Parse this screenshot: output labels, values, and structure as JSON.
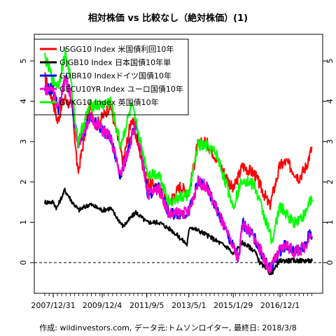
{
  "chart_data": {
    "type": "line",
    "title": "相対株価 vs 比較なし（絶対株価）(1)",
    "caption": "作成: wildinvestors.com, データ元:トムソンロイター, 最終日: 2018/3/8",
    "x_tick_labels": [
      "2007/12/31",
      "2009/12/4",
      "2011/9/5",
      "2013/5/1",
      "2015/1/29",
      "2016/12/1"
    ],
    "x_tick_dates": [
      "2007-12-31",
      "2009-12-04",
      "2011-09-05",
      "2013-05-01",
      "2015-01-29",
      "2016-12-01"
    ],
    "x_range": [
      "2007-09-01",
      "2018-03-08"
    ],
    "ylim": [
      -0.5,
      5.4
    ],
    "y_ticks": [
      0,
      1,
      2,
      3,
      4,
      5
    ],
    "y_ticks_both_sides": true,
    "zero_line": "dashed",
    "grid": false,
    "legend_position": "top-left",
    "series": [
      {
        "name": "USGG10 Index 米国債利回10年",
        "color": "#ff0000",
        "points": [
          [
            "2007-09-01",
            4.6
          ],
          [
            "2007-11-01",
            4.3
          ],
          [
            "2007-12-31",
            4.0
          ],
          [
            "2008-03-01",
            3.5
          ],
          [
            "2008-06-15",
            4.1
          ],
          [
            "2008-10-01",
            3.8
          ],
          [
            "2008-12-20",
            2.2
          ],
          [
            "2009-03-01",
            2.9
          ],
          [
            "2009-06-10",
            3.9
          ],
          [
            "2009-09-01",
            3.4
          ],
          [
            "2009-12-04",
            3.6
          ],
          [
            "2010-04-01",
            3.9
          ],
          [
            "2010-10-01",
            2.5
          ],
          [
            "2011-02-01",
            3.6
          ],
          [
            "2011-09-05",
            2.0
          ],
          [
            "2012-01-01",
            1.9
          ],
          [
            "2012-07-20",
            1.5
          ],
          [
            "2013-01-01",
            1.9
          ],
          [
            "2013-05-01",
            1.7
          ],
          [
            "2013-09-01",
            2.9
          ],
          [
            "2014-01-01",
            3.0
          ],
          [
            "2014-06-01",
            2.6
          ],
          [
            "2015-01-29",
            1.8
          ],
          [
            "2015-06-10",
            2.4
          ],
          [
            "2015-12-01",
            2.2
          ],
          [
            "2016-07-05",
            1.4
          ],
          [
            "2016-12-01",
            2.4
          ],
          [
            "2017-03-01",
            2.5
          ],
          [
            "2017-09-01",
            2.1
          ],
          [
            "2017-12-15",
            2.4
          ],
          [
            "2018-03-08",
            2.87
          ]
        ]
      },
      {
        "name": "GJGB10 Index 日本国債10年単",
        "color": "#000000",
        "points": [
          [
            "2007-09-01",
            1.5
          ],
          [
            "2007-12-31",
            1.5
          ],
          [
            "2008-02-20",
            1.35
          ],
          [
            "2008-06-15",
            1.8
          ],
          [
            "2008-10-01",
            1.5
          ],
          [
            "2009-01-01",
            1.3
          ],
          [
            "2009-06-10",
            1.45
          ],
          [
            "2009-12-04",
            1.3
          ],
          [
            "2010-04-01",
            1.35
          ],
          [
            "2010-10-01",
            0.9
          ],
          [
            "2011-04-01",
            1.25
          ],
          [
            "2011-09-05",
            1.0
          ],
          [
            "2012-03-01",
            1.0
          ],
          [
            "2012-09-01",
            0.8
          ],
          [
            "2013-04-05",
            0.45
          ],
          [
            "2013-05-15",
            0.9
          ],
          [
            "2014-01-01",
            0.7
          ],
          [
            "2014-12-01",
            0.35
          ],
          [
            "2015-01-20",
            0.2
          ],
          [
            "2015-06-10",
            0.5
          ],
          [
            "2015-12-01",
            0.3
          ],
          [
            "2016-02-15",
            0.0
          ],
          [
            "2016-07-25",
            -0.28
          ],
          [
            "2016-12-01",
            0.05
          ],
          [
            "2017-06-01",
            0.05
          ],
          [
            "2017-12-01",
            0.05
          ],
          [
            "2018-03-08",
            0.04
          ]
        ]
      },
      {
        "name": "GDBR10 Indexドイツ国債10年",
        "color": "#0000ff",
        "points": [
          [
            "2007-09-01",
            4.3
          ],
          [
            "2007-12-31",
            4.3
          ],
          [
            "2008-03-15",
            3.8
          ],
          [
            "2008-06-25",
            4.6
          ],
          [
            "2008-09-01",
            4.2
          ],
          [
            "2008-12-20",
            2.95
          ],
          [
            "2009-06-10",
            3.6
          ],
          [
            "2009-12-04",
            3.3
          ],
          [
            "2010-04-01",
            3.1
          ],
          [
            "2010-08-25",
            2.15
          ],
          [
            "2011-04-01",
            3.45
          ],
          [
            "2011-09-23",
            1.7
          ],
          [
            "2012-03-01",
            1.85
          ],
          [
            "2012-07-20",
            1.2
          ],
          [
            "2013-05-01",
            1.25
          ],
          [
            "2013-09-10",
            2.0
          ],
          [
            "2014-01-01",
            1.9
          ],
          [
            "2014-06-01",
            1.35
          ],
          [
            "2014-12-01",
            0.6
          ],
          [
            "2015-04-20",
            0.08
          ],
          [
            "2015-06-10",
            1.0
          ],
          [
            "2015-12-01",
            0.6
          ],
          [
            "2016-07-05",
            -0.18
          ],
          [
            "2016-12-01",
            0.3
          ],
          [
            "2017-03-01",
            0.45
          ],
          [
            "2017-06-20",
            0.25
          ],
          [
            "2017-12-01",
            0.4
          ],
          [
            "2018-02-01",
            0.75
          ],
          [
            "2018-03-08",
            0.65
          ]
        ]
      },
      {
        "name": "GECU10YR Index ユーロ国債10年",
        "color": "#ff00cc",
        "points": [
          [
            "2007-09-01",
            4.3
          ],
          [
            "2007-12-31",
            4.3
          ],
          [
            "2008-03-15",
            3.8
          ],
          [
            "2008-06-25",
            4.6
          ],
          [
            "2008-09-01",
            4.2
          ],
          [
            "2008-12-20",
            2.95
          ],
          [
            "2009-06-10",
            3.6
          ],
          [
            "2009-12-04",
            3.3
          ],
          [
            "2010-04-01",
            3.1
          ],
          [
            "2010-08-25",
            2.15
          ],
          [
            "2011-04-01",
            3.45
          ],
          [
            "2011-09-23",
            1.7
          ],
          [
            "2012-03-01",
            1.85
          ],
          [
            "2012-07-20",
            1.2
          ],
          [
            "2013-05-01",
            1.25
          ],
          [
            "2013-09-10",
            2.0
          ],
          [
            "2014-01-01",
            1.9
          ],
          [
            "2014-06-01",
            1.35
          ],
          [
            "2014-12-01",
            0.6
          ],
          [
            "2015-04-20",
            0.08
          ],
          [
            "2015-06-10",
            1.0
          ],
          [
            "2015-12-01",
            0.6
          ],
          [
            "2016-07-05",
            -0.18
          ],
          [
            "2016-12-01",
            0.3
          ],
          [
            "2017-03-01",
            0.45
          ],
          [
            "2017-06-20",
            0.25
          ],
          [
            "2017-12-01",
            0.4
          ],
          [
            "2018-02-01",
            0.7
          ],
          [
            "2018-03-08",
            0.62
          ]
        ]
      },
      {
        "name": "GUKG10 Index 英国債10年",
        "color": "#00ff00",
        "points": [
          [
            "2007-09-01",
            5.1
          ],
          [
            "2007-12-31",
            4.5
          ],
          [
            "2008-03-15",
            4.4
          ],
          [
            "2008-06-25",
            5.2
          ],
          [
            "2008-09-01",
            4.6
          ],
          [
            "2008-12-20",
            3.0
          ],
          [
            "2009-06-10",
            3.9
          ],
          [
            "2009-12-04",
            3.9
          ],
          [
            "2010-04-01",
            4.0
          ],
          [
            "2010-08-25",
            2.9
          ],
          [
            "2011-02-01",
            3.9
          ],
          [
            "2011-09-23",
            2.2
          ],
          [
            "2012-03-01",
            2.2
          ],
          [
            "2012-07-20",
            1.5
          ],
          [
            "2013-05-01",
            1.7
          ],
          [
            "2013-09-10",
            2.9
          ],
          [
            "2014-01-01",
            2.9
          ],
          [
            "2014-06-01",
            2.7
          ],
          [
            "2015-01-29",
            1.4
          ],
          [
            "2015-06-10",
            2.1
          ],
          [
            "2015-12-01",
            1.9
          ],
          [
            "2016-08-10",
            0.55
          ],
          [
            "2016-12-01",
            1.4
          ],
          [
            "2017-03-01",
            1.2
          ],
          [
            "2017-06-20",
            1.0
          ],
          [
            "2017-12-01",
            1.2
          ],
          [
            "2018-02-10",
            1.6
          ],
          [
            "2018-03-08",
            1.5
          ]
        ]
      }
    ]
  }
}
